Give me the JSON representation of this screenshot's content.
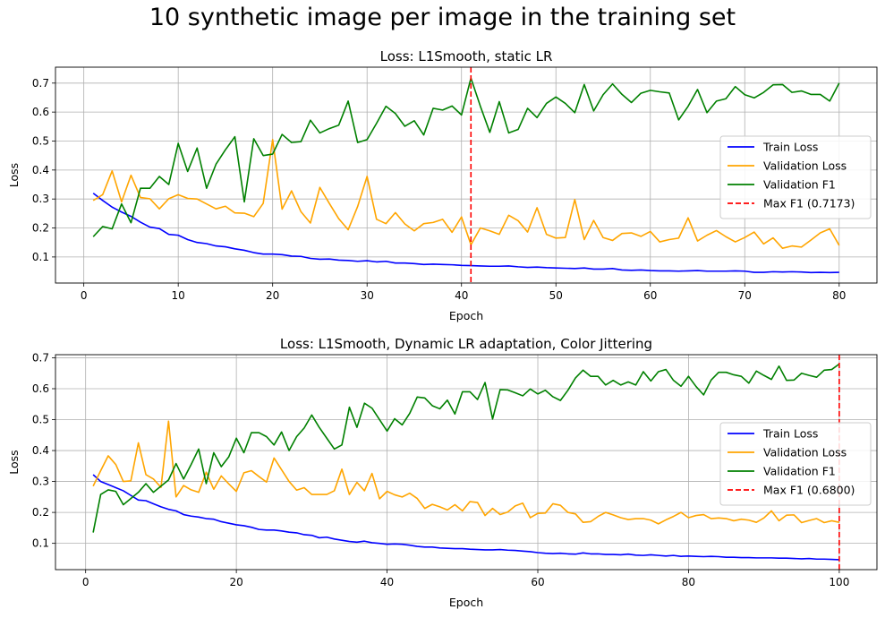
{
  "suptitle": "10 synthetic image per image in the training set",
  "colors": {
    "train": "#0000ff",
    "val_loss": "#ffa500",
    "val_f1": "#008000",
    "max_f1": "#ff0000"
  },
  "chart_data": [
    {
      "type": "line",
      "title": "Loss: L1Smooth, static LR",
      "xlabel": "Epoch",
      "ylabel": "Loss",
      "xlim": [
        -3,
        84
      ],
      "ylim": [
        0.01,
        0.755
      ],
      "xticks": [
        0,
        10,
        20,
        30,
        40,
        50,
        60,
        70,
        80
      ],
      "yticks": [
        0.1,
        0.2,
        0.3,
        0.4,
        0.5,
        0.6,
        0.7
      ],
      "grid": true,
      "legend_position": "center-right",
      "vline": {
        "x": 41,
        "label": "Max F1 (0.7173)",
        "value": 0.7173
      },
      "x": [
        1,
        2,
        3,
        4,
        5,
        6,
        7,
        8,
        9,
        10,
        11,
        12,
        13,
        14,
        15,
        16,
        17,
        18,
        19,
        20,
        21,
        22,
        23,
        24,
        25,
        26,
        27,
        28,
        29,
        30,
        31,
        32,
        33,
        34,
        35,
        36,
        37,
        38,
        39,
        40,
        41,
        42,
        43,
        44,
        45,
        46,
        47,
        48,
        49,
        50,
        51,
        52,
        53,
        54,
        55,
        56,
        57,
        58,
        59,
        60,
        61,
        62,
        63,
        64,
        65,
        66,
        67,
        68,
        69,
        70,
        71,
        72,
        73,
        74,
        75,
        76,
        77,
        78,
        79,
        80
      ],
      "series": [
        {
          "name": "Train Loss",
          "color": "#0000ff",
          "values": [
            0.32,
            0.295,
            0.272,
            0.255,
            0.24,
            0.22,
            0.203,
            0.198,
            0.178,
            0.175,
            0.16,
            0.15,
            0.146,
            0.138,
            0.135,
            0.128,
            0.123,
            0.115,
            0.11,
            0.11,
            0.108,
            0.103,
            0.102,
            0.095,
            0.092,
            0.093,
            0.089,
            0.088,
            0.085,
            0.087,
            0.083,
            0.085,
            0.079,
            0.079,
            0.077,
            0.074,
            0.075,
            0.074,
            0.073,
            0.071,
            0.07,
            0.069,
            0.068,
            0.068,
            0.069,
            0.066,
            0.064,
            0.065,
            0.063,
            0.062,
            0.061,
            0.06,
            0.062,
            0.058,
            0.058,
            0.06,
            0.055,
            0.054,
            0.055,
            0.053,
            0.052,
            0.052,
            0.051,
            0.052,
            0.053,
            0.051,
            0.051,
            0.051,
            0.052,
            0.051,
            0.047,
            0.047,
            0.049,
            0.048,
            0.049,
            0.048,
            0.046,
            0.047,
            0.046,
            0.047
          ]
        },
        {
          "name": "Validation Loss",
          "color": "#ffa500",
          "values": [
            0.295,
            0.315,
            0.397,
            0.29,
            0.382,
            0.305,
            0.301,
            0.266,
            0.301,
            0.315,
            0.302,
            0.3,
            0.283,
            0.266,
            0.275,
            0.252,
            0.251,
            0.239,
            0.285,
            0.505,
            0.265,
            0.328,
            0.256,
            0.217,
            0.34,
            0.285,
            0.232,
            0.194,
            0.274,
            0.378,
            0.23,
            0.215,
            0.253,
            0.214,
            0.19,
            0.215,
            0.219,
            0.23,
            0.185,
            0.238,
            0.142,
            0.2,
            0.19,
            0.178,
            0.244,
            0.225,
            0.186,
            0.27,
            0.178,
            0.165,
            0.167,
            0.298,
            0.16,
            0.226,
            0.167,
            0.157,
            0.181,
            0.183,
            0.171,
            0.188,
            0.152,
            0.16,
            0.165,
            0.235,
            0.155,
            0.175,
            0.191,
            0.17,
            0.152,
            0.167,
            0.186,
            0.145,
            0.166,
            0.13,
            0.138,
            0.134,
            0.158,
            0.183,
            0.197,
            0.14
          ]
        },
        {
          "name": "Validation F1",
          "color": "#008000",
          "values": [
            0.17,
            0.205,
            0.197,
            0.283,
            0.218,
            0.337,
            0.337,
            0.378,
            0.35,
            0.492,
            0.395,
            0.476,
            0.337,
            0.42,
            0.47,
            0.515,
            0.29,
            0.508,
            0.45,
            0.455,
            0.523,
            0.495,
            0.498,
            0.572,
            0.528,
            0.543,
            0.555,
            0.638,
            0.495,
            0.505,
            0.561,
            0.62,
            0.595,
            0.551,
            0.57,
            0.521,
            0.613,
            0.607,
            0.621,
            0.59,
            0.7173,
            0.62,
            0.53,
            0.636,
            0.528,
            0.54,
            0.613,
            0.581,
            0.63,
            0.652,
            0.63,
            0.598,
            0.695,
            0.604,
            0.66,
            0.697,
            0.661,
            0.633,
            0.665,
            0.675,
            0.67,
            0.666,
            0.573,
            0.62,
            0.678,
            0.598,
            0.638,
            0.646,
            0.688,
            0.66,
            0.649,
            0.668,
            0.694,
            0.695,
            0.668,
            0.673,
            0.661,
            0.661,
            0.638,
            0.7
          ]
        }
      ]
    },
    {
      "type": "line",
      "title": "Loss: L1Smooth, Dynamic LR adaptation, Color Jittering",
      "xlabel": "Epoch",
      "ylabel": "Loss",
      "xlim": [
        -4,
        105
      ],
      "ylim": [
        0.015,
        0.71
      ],
      "xticks": [
        0,
        20,
        40,
        60,
        80,
        100
      ],
      "yticks": [
        0.1,
        0.2,
        0.3,
        0.4,
        0.5,
        0.6,
        0.7
      ],
      "grid": true,
      "legend_position": "center-right",
      "vline": {
        "x": 100,
        "label": "Max F1 (0.6800)",
        "value": 0.68
      },
      "x": [
        1,
        2,
        3,
        4,
        5,
        6,
        7,
        8,
        9,
        10,
        11,
        12,
        13,
        14,
        15,
        16,
        17,
        18,
        19,
        20,
        21,
        22,
        23,
        24,
        25,
        26,
        27,
        28,
        29,
        30,
        31,
        32,
        33,
        34,
        35,
        36,
        37,
        38,
        39,
        40,
        41,
        42,
        43,
        44,
        45,
        46,
        47,
        48,
        49,
        50,
        51,
        52,
        53,
        54,
        55,
        56,
        57,
        58,
        59,
        60,
        61,
        62,
        63,
        64,
        65,
        66,
        67,
        68,
        69,
        70,
        71,
        72,
        73,
        74,
        75,
        76,
        77,
        78,
        79,
        80,
        81,
        82,
        83,
        84,
        85,
        86,
        87,
        88,
        89,
        90,
        91,
        92,
        93,
        94,
        95,
        96,
        97,
        98,
        99,
        100
      ],
      "series": [
        {
          "name": "Train Loss",
          "color": "#0000ff",
          "values": [
            0.322,
            0.3,
            0.29,
            0.28,
            0.27,
            0.255,
            0.24,
            0.238,
            0.228,
            0.218,
            0.21,
            0.205,
            0.193,
            0.188,
            0.185,
            0.18,
            0.178,
            0.17,
            0.165,
            0.16,
            0.157,
            0.152,
            0.145,
            0.143,
            0.143,
            0.14,
            0.136,
            0.134,
            0.128,
            0.126,
            0.118,
            0.12,
            0.114,
            0.11,
            0.106,
            0.104,
            0.107,
            0.102,
            0.1,
            0.097,
            0.098,
            0.097,
            0.094,
            0.09,
            0.088,
            0.088,
            0.085,
            0.084,
            0.083,
            0.083,
            0.081,
            0.08,
            0.079,
            0.079,
            0.08,
            0.078,
            0.077,
            0.075,
            0.073,
            0.07,
            0.068,
            0.067,
            0.068,
            0.066,
            0.065,
            0.069,
            0.066,
            0.066,
            0.064,
            0.064,
            0.063,
            0.065,
            0.062,
            0.061,
            0.063,
            0.061,
            0.059,
            0.061,
            0.058,
            0.059,
            0.058,
            0.057,
            0.058,
            0.057,
            0.055,
            0.055,
            0.054,
            0.054,
            0.053,
            0.053,
            0.053,
            0.052,
            0.052,
            0.051,
            0.05,
            0.051,
            0.049,
            0.049,
            0.048,
            0.047
          ]
        },
        {
          "name": "Validation Loss",
          "color": "#ffa500",
          "values": [
            0.285,
            0.335,
            0.383,
            0.355,
            0.3,
            0.302,
            0.425,
            0.322,
            0.308,
            0.281,
            0.495,
            0.25,
            0.287,
            0.273,
            0.265,
            0.33,
            0.275,
            0.318,
            0.292,
            0.268,
            0.328,
            0.335,
            0.316,
            0.298,
            0.376,
            0.338,
            0.3,
            0.272,
            0.28,
            0.258,
            0.258,
            0.258,
            0.27,
            0.34,
            0.258,
            0.297,
            0.27,
            0.326,
            0.244,
            0.268,
            0.257,
            0.25,
            0.262,
            0.245,
            0.213,
            0.226,
            0.218,
            0.208,
            0.225,
            0.205,
            0.235,
            0.232,
            0.19,
            0.213,
            0.193,
            0.201,
            0.221,
            0.23,
            0.183,
            0.197,
            0.198,
            0.228,
            0.223,
            0.2,
            0.195,
            0.168,
            0.17,
            0.187,
            0.2,
            0.192,
            0.183,
            0.177,
            0.18,
            0.18,
            0.175,
            0.163,
            0.176,
            0.187,
            0.2,
            0.183,
            0.19,
            0.193,
            0.18,
            0.182,
            0.18,
            0.173,
            0.178,
            0.175,
            0.168,
            0.182,
            0.205,
            0.173,
            0.191,
            0.192,
            0.167,
            0.174,
            0.18,
            0.167,
            0.173,
            0.168
          ]
        },
        {
          "name": "Validation F1",
          "color": "#008000",
          "values": [
            0.135,
            0.258,
            0.273,
            0.268,
            0.225,
            0.245,
            0.265,
            0.293,
            0.265,
            0.285,
            0.305,
            0.358,
            0.308,
            0.355,
            0.405,
            0.293,
            0.393,
            0.348,
            0.38,
            0.44,
            0.393,
            0.458,
            0.458,
            0.445,
            0.418,
            0.46,
            0.4,
            0.445,
            0.473,
            0.515,
            0.475,
            0.44,
            0.405,
            0.418,
            0.54,
            0.475,
            0.553,
            0.537,
            0.5,
            0.463,
            0.503,
            0.483,
            0.52,
            0.573,
            0.57,
            0.545,
            0.535,
            0.563,
            0.518,
            0.59,
            0.59,
            0.565,
            0.62,
            0.502,
            0.597,
            0.596,
            0.587,
            0.577,
            0.599,
            0.583,
            0.595,
            0.574,
            0.562,
            0.595,
            0.635,
            0.66,
            0.64,
            0.64,
            0.612,
            0.627,
            0.612,
            0.622,
            0.612,
            0.655,
            0.625,
            0.655,
            0.662,
            0.627,
            0.608,
            0.64,
            0.607,
            0.58,
            0.628,
            0.653,
            0.653,
            0.645,
            0.64,
            0.618,
            0.657,
            0.643,
            0.63,
            0.673,
            0.627,
            0.628,
            0.65,
            0.643,
            0.637,
            0.66,
            0.662,
            0.68
          ]
        }
      ]
    }
  ]
}
